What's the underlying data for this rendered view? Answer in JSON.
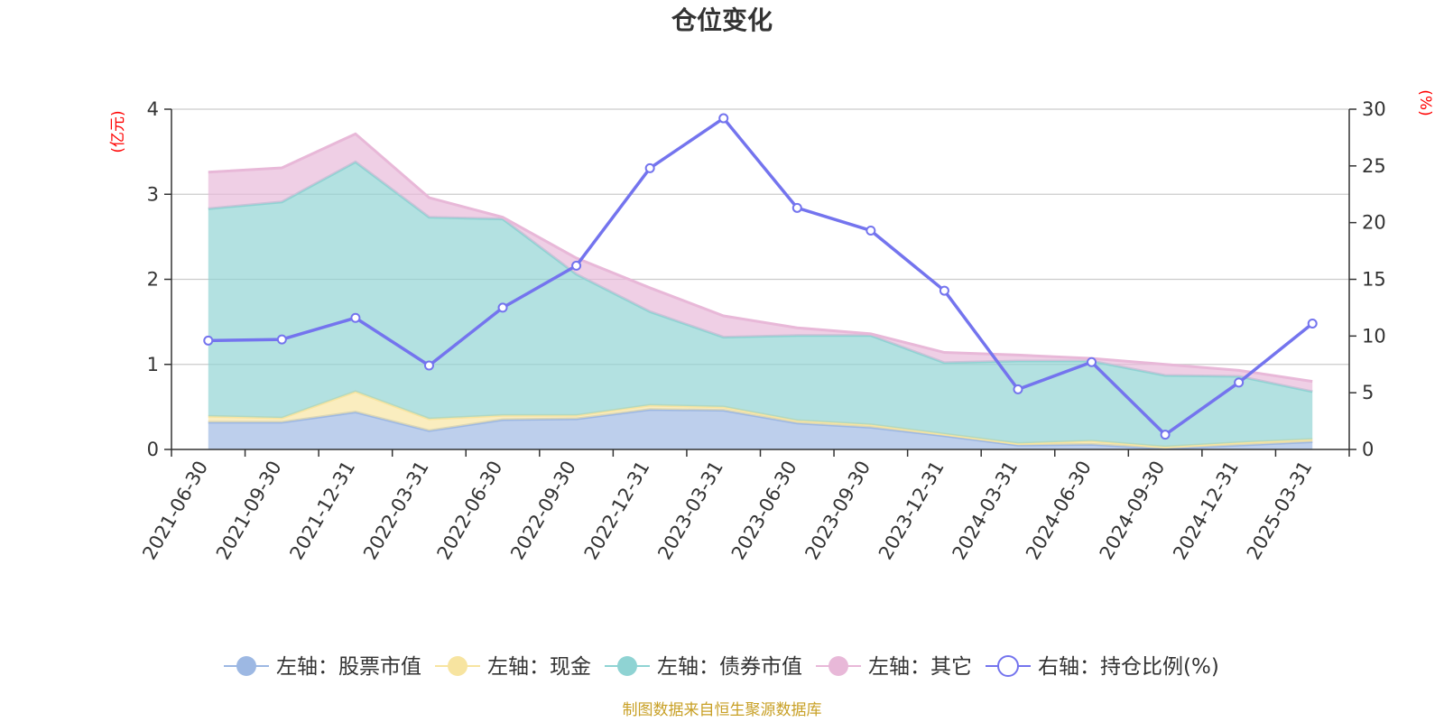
{
  "chart_data": {
    "type": "area",
    "title": "仓位变化",
    "categories": [
      "2021-06-30",
      "2021-09-30",
      "2021-12-31",
      "2022-03-31",
      "2022-06-30",
      "2022-09-30",
      "2022-12-31",
      "2023-03-31",
      "2023-06-30",
      "2023-09-30",
      "2023-12-31",
      "2024-03-31",
      "2024-06-30",
      "2024-09-30",
      "2024-12-31",
      "2025-03-31"
    ],
    "left_axis": {
      "unit": "(亿元)",
      "ylim": [
        0,
        4
      ],
      "ticks": [
        "0",
        "1",
        "2",
        "3",
        "4"
      ]
    },
    "right_axis": {
      "unit": "(%)",
      "ylim": [
        0,
        30
      ],
      "ticks": [
        "0",
        "5",
        "10",
        "15",
        "20",
        "25",
        "30"
      ]
    },
    "stacked": true,
    "grid": true,
    "legend_position": "bottom",
    "series": [
      {
        "name": "左轴：股票市值",
        "axis": "left",
        "kind": "area",
        "color": "#9db8e3",
        "values": [
          0.32,
          0.32,
          0.44,
          0.22,
          0.35,
          0.36,
          0.47,
          0.46,
          0.31,
          0.26,
          0.16,
          0.05,
          0.06,
          0.01,
          0.05,
          0.09
        ]
      },
      {
        "name": "左轴：现金",
        "axis": "left",
        "kind": "area",
        "color": "#f7e4a0",
        "values": [
          0.07,
          0.05,
          0.24,
          0.14,
          0.05,
          0.04,
          0.05,
          0.04,
          0.03,
          0.03,
          0.02,
          0.02,
          0.04,
          0.02,
          0.03,
          0.03
        ]
      },
      {
        "name": "左轴：债券市值",
        "axis": "left",
        "kind": "area",
        "color": "#8fd3d3",
        "values": [
          2.44,
          2.54,
          2.7,
          2.37,
          2.31,
          1.66,
          1.1,
          0.82,
          1.0,
          1.05,
          0.84,
          0.97,
          0.94,
          0.84,
          0.78,
          0.56
        ]
      },
      {
        "name": "左轴：其它",
        "axis": "left",
        "kind": "area",
        "color": "#e8b8d8",
        "values": [
          0.43,
          0.4,
          0.33,
          0.23,
          0.02,
          0.19,
          0.28,
          0.25,
          0.09,
          0.02,
          0.12,
          0.07,
          0.03,
          0.13,
          0.07,
          0.12
        ]
      },
      {
        "name": "右轴：持仓比例(%)",
        "axis": "right",
        "kind": "line",
        "color": "#7474ee",
        "values": [
          9.6,
          9.7,
          11.6,
          7.4,
          12.5,
          16.2,
          24.8,
          29.2,
          21.3,
          19.3,
          14.0,
          5.3,
          7.7,
          1.3,
          5.9,
          11.1
        ]
      }
    ],
    "source_note": "制图数据来自恒生聚源数据库"
  }
}
